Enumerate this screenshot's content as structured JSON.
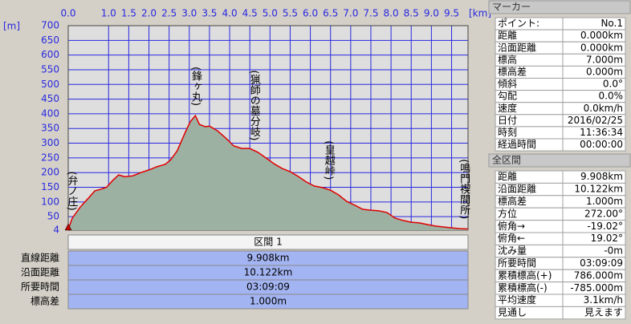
{
  "chart_data": {
    "type": "area",
    "y_label": "[m]",
    "x_label": "[km]",
    "xlim": [
      0,
      9.908
    ],
    "ylim": [
      4,
      700
    ],
    "xticks": [
      {
        "value": 0,
        "label": "0.0"
      },
      {
        "value": 1,
        "label": "1.0"
      },
      1.5,
      {
        "value": 2,
        "label": "2.0"
      },
      2.5,
      {
        "value": 3,
        "label": "3.0"
      },
      3.5,
      {
        "value": 4,
        "label": "4.0"
      },
      4.5,
      {
        "value": 5,
        "label": "5.0"
      },
      5.5,
      {
        "value": 6,
        "label": "6.0"
      },
      6.5,
      {
        "value": 7,
        "label": "7.0"
      },
      7.5,
      {
        "value": 8,
        "label": "8.0"
      },
      8.5,
      {
        "value": 9,
        "label": "9.0"
      },
      9.5
    ],
    "yticks": [
      4,
      50,
      100,
      150,
      200,
      250,
      300,
      350,
      400,
      450,
      500,
      550,
      600,
      650,
      700
    ],
    "grid": true,
    "grid_color": "#2828e0",
    "line_color": "#e00000",
    "fill_color": "#9db1a2",
    "x": [
      0,
      0.1,
      0.3,
      0.5,
      0.66,
      0.8,
      0.95,
      1.1,
      1.25,
      1.4,
      1.6,
      1.8,
      2.0,
      2.2,
      2.4,
      2.53,
      2.7,
      2.9,
      3.02,
      3.15,
      3.25,
      3.4,
      3.5,
      3.7,
      3.9,
      4.1,
      4.3,
      4.5,
      4.7,
      4.9,
      5.1,
      5.3,
      5.5,
      5.7,
      5.9,
      6.1,
      6.3,
      6.5,
      6.7,
      6.9,
      7.1,
      7.3,
      7.5,
      7.7,
      7.9,
      8.1,
      8.3,
      8.5,
      8.7,
      8.9,
      9.1,
      9.3,
      9.5,
      9.7,
      9.908
    ],
    "values": [
      7,
      45,
      83,
      113,
      138,
      143,
      150,
      173,
      192,
      186,
      189,
      200,
      209,
      220,
      228,
      242,
      274,
      337,
      372,
      394,
      364,
      356,
      358,
      342,
      318,
      291,
      282,
      282,
      269,
      250,
      230,
      214,
      203,
      187,
      168,
      154,
      149,
      140,
      124,
      102,
      89,
      75,
      72,
      70,
      64,
      45,
      37,
      31,
      29,
      23,
      18,
      15,
      12,
      9,
      8
    ],
    "annotations": [
      {
        "text": "(弁ノ庄)",
        "x": 0.08
      },
      {
        "text": "(鋒ヶ丸)",
        "x": 3.15
      },
      {
        "text": "(猟師の墓分岐)",
        "x": 4.6
      },
      {
        "text": "(皇越峠)",
        "x": 6.45
      },
      {
        "text": "(鳴門禊間所)",
        "x": 9.8
      }
    ]
  },
  "section_table": {
    "header": "区間 1",
    "rows": [
      [
        "直線距離",
        "9.908km"
      ],
      [
        "沿面距離",
        "10.122km"
      ],
      [
        "所要時間",
        "03:09:09"
      ],
      [
        "標高差",
        "1.000m"
      ]
    ]
  },
  "marker_panel": {
    "title": "マーカー",
    "rows": [
      [
        "ポイント:",
        "No.1"
      ],
      [
        "距離",
        "0.000km"
      ],
      [
        "沿面距離",
        "0.000km"
      ],
      [
        "標高",
        "7.000m"
      ],
      [
        "標高差",
        "0.000m"
      ],
      [
        "傾斜",
        "0.0°"
      ],
      [
        "勾配",
        "0.0%"
      ],
      [
        "速度",
        "0.0km/h"
      ],
      [
        "日付",
        "2016/02/25"
      ],
      [
        "時刻",
        "11:36:34"
      ],
      [
        "経過時間",
        "00:00:00"
      ]
    ]
  },
  "total_panel": {
    "title": "全区間",
    "rows": [
      [
        "距離",
        "9.908km"
      ],
      [
        "沿面距離",
        "10.122km"
      ],
      [
        "標高差",
        "1.000m"
      ],
      [
        "方位",
        "272.00°"
      ],
      [
        "俯角→",
        "-19.02°"
      ],
      [
        "俯角←",
        "19.02°"
      ],
      [
        "沈み量",
        "-0m"
      ],
      [
        "所要時間",
        "03:09:09"
      ],
      [
        "累積標高(+)",
        "786.000m"
      ],
      [
        "累積標高(-)",
        "-785.000m"
      ],
      [
        "平均速度",
        "3.1km/h"
      ],
      [
        "見通し",
        "見えます"
      ]
    ]
  }
}
